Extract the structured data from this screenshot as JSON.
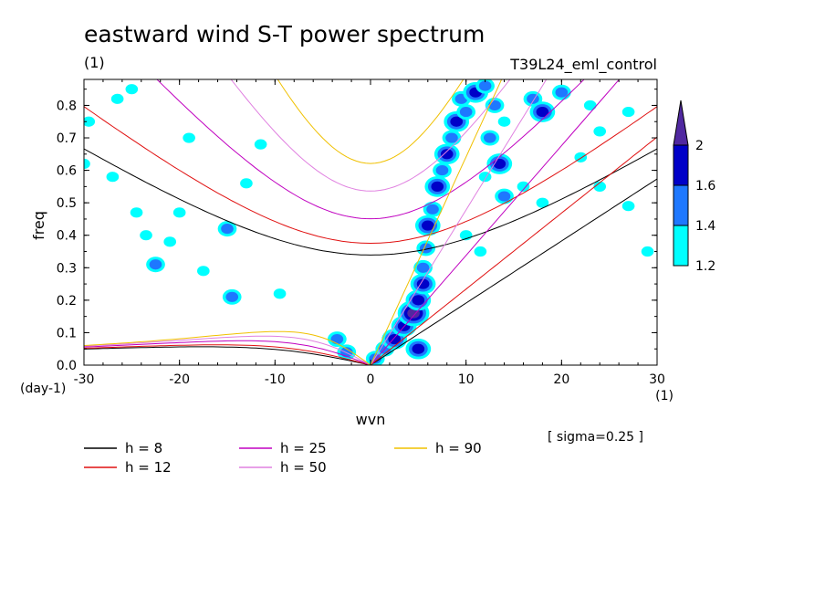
{
  "chart_data": {
    "type": "contour",
    "title": "eastward wind S-T power spectrum",
    "title_unit": "(1)",
    "case_label": "T39L24_eml_control",
    "xlabel": "wvn",
    "ylabel": "freq",
    "x_unit": "(1)",
    "y_unit": "(day-1)",
    "xlim": [
      -30,
      30
    ],
    "ylim": [
      0,
      0.88
    ],
    "x_ticks": [
      "-30",
      "-20",
      "-10",
      "0",
      "10",
      "20",
      "30"
    ],
    "y_ticks": [
      "0.0",
      "0.1",
      "0.2",
      "0.3",
      "0.4",
      "0.5",
      "0.6",
      "0.7",
      "0.8"
    ],
    "sigma_note": "[ sigma=0.25 ]",
    "colorbar": {
      "levels": [
        "1.2",
        "1.4",
        "1.6",
        "2"
      ],
      "colors": [
        "#00ffff",
        "#1e78ff",
        "#0000c8",
        "#5028a0"
      ]
    },
    "dispersion_curves": [
      {
        "name": "h =  8",
        "h": 8,
        "color": "#000000"
      },
      {
        "name": "h = 12",
        "h": 12,
        "color": "#e01010"
      },
      {
        "name": "h = 25",
        "h": 25,
        "color": "#c000c0"
      },
      {
        "name": "h = 50",
        "h": 50,
        "color": "#e080e0"
      },
      {
        "name": "h = 90",
        "h": 90,
        "color": "#f0c000"
      }
    ],
    "power_blobs": [
      {
        "x": 0.5,
        "y": 0.02,
        "level": 2
      },
      {
        "x": 1.5,
        "y": 0.05,
        "level": 2
      },
      {
        "x": 2.5,
        "y": 0.08,
        "level": 3
      },
      {
        "x": 3.5,
        "y": 0.12,
        "level": 3
      },
      {
        "x": 4.5,
        "y": 0.16,
        "level": 4
      },
      {
        "x": 5.0,
        "y": 0.2,
        "level": 3
      },
      {
        "x": 5.5,
        "y": 0.25,
        "level": 3
      },
      {
        "x": 5.5,
        "y": 0.3,
        "level": 2
      },
      {
        "x": 5.8,
        "y": 0.36,
        "level": 2
      },
      {
        "x": 6.0,
        "y": 0.43,
        "level": 3
      },
      {
        "x": 6.5,
        "y": 0.48,
        "level": 2
      },
      {
        "x": 7.0,
        "y": 0.55,
        "level": 3
      },
      {
        "x": 7.5,
        "y": 0.6,
        "level": 2
      },
      {
        "x": 8.0,
        "y": 0.65,
        "level": 3
      },
      {
        "x": 8.5,
        "y": 0.7,
        "level": 2
      },
      {
        "x": 9.0,
        "y": 0.75,
        "level": 3
      },
      {
        "x": 10.0,
        "y": 0.78,
        "level": 2
      },
      {
        "x": 9.5,
        "y": 0.82,
        "level": 2
      },
      {
        "x": 11.0,
        "y": 0.84,
        "level": 3
      },
      {
        "x": 13.0,
        "y": 0.8,
        "level": 2
      },
      {
        "x": 12.0,
        "y": 0.86,
        "level": 2
      },
      {
        "x": 14.0,
        "y": 0.75,
        "level": 1
      },
      {
        "x": 12.5,
        "y": 0.7,
        "level": 2
      },
      {
        "x": 13.5,
        "y": 0.62,
        "level": 3
      },
      {
        "x": 12.0,
        "y": 0.58,
        "level": 1
      },
      {
        "x": 14.0,
        "y": 0.52,
        "level": 2
      },
      {
        "x": 17.0,
        "y": 0.82,
        "level": 2
      },
      {
        "x": 18.0,
        "y": 0.78,
        "level": 3
      },
      {
        "x": 20.0,
        "y": 0.84,
        "level": 2
      },
      {
        "x": 23.0,
        "y": 0.8,
        "level": 1
      },
      {
        "x": 24.0,
        "y": 0.72,
        "level": 1
      },
      {
        "x": 27.0,
        "y": 0.78,
        "level": 1
      },
      {
        "x": 22.0,
        "y": 0.64,
        "level": 1
      },
      {
        "x": 16.0,
        "y": 0.55,
        "level": 1
      },
      {
        "x": 18.0,
        "y": 0.5,
        "level": 1
      },
      {
        "x": 10.0,
        "y": 0.4,
        "level": 1
      },
      {
        "x": 11.5,
        "y": 0.35,
        "level": 1
      },
      {
        "x": -3.5,
        "y": 0.08,
        "level": 2
      },
      {
        "x": -2.5,
        "y": 0.04,
        "level": 2
      },
      {
        "x": 5.0,
        "y": 0.05,
        "level": 3
      },
      {
        "x": -29.5,
        "y": 0.75,
        "level": 1
      },
      {
        "x": -30.0,
        "y": 0.62,
        "level": 1
      },
      {
        "x": -27.0,
        "y": 0.58,
        "level": 1
      },
      {
        "x": -26.5,
        "y": 0.82,
        "level": 1
      },
      {
        "x": -24.5,
        "y": 0.47,
        "level": 1
      },
      {
        "x": -23.5,
        "y": 0.4,
        "level": 1
      },
      {
        "x": -22.5,
        "y": 0.31,
        "level": 2
      },
      {
        "x": -21.0,
        "y": 0.38,
        "level": 1
      },
      {
        "x": -20.0,
        "y": 0.47,
        "level": 1
      },
      {
        "x": -19.0,
        "y": 0.7,
        "level": 1
      },
      {
        "x": -17.5,
        "y": 0.29,
        "level": 1
      },
      {
        "x": -15.0,
        "y": 0.42,
        "level": 2
      },
      {
        "x": -14.5,
        "y": 0.21,
        "level": 2
      },
      {
        "x": -13.0,
        "y": 0.56,
        "level": 1
      },
      {
        "x": -11.5,
        "y": 0.68,
        "level": 1
      },
      {
        "x": -9.5,
        "y": 0.22,
        "level": 1
      },
      {
        "x": -25.0,
        "y": 0.85,
        "level": 1
      },
      {
        "x": 24.0,
        "y": 0.55,
        "level": 1
      },
      {
        "x": 27.0,
        "y": 0.49,
        "level": 1
      },
      {
        "x": 29.0,
        "y": 0.35,
        "level": 1
      }
    ]
  }
}
